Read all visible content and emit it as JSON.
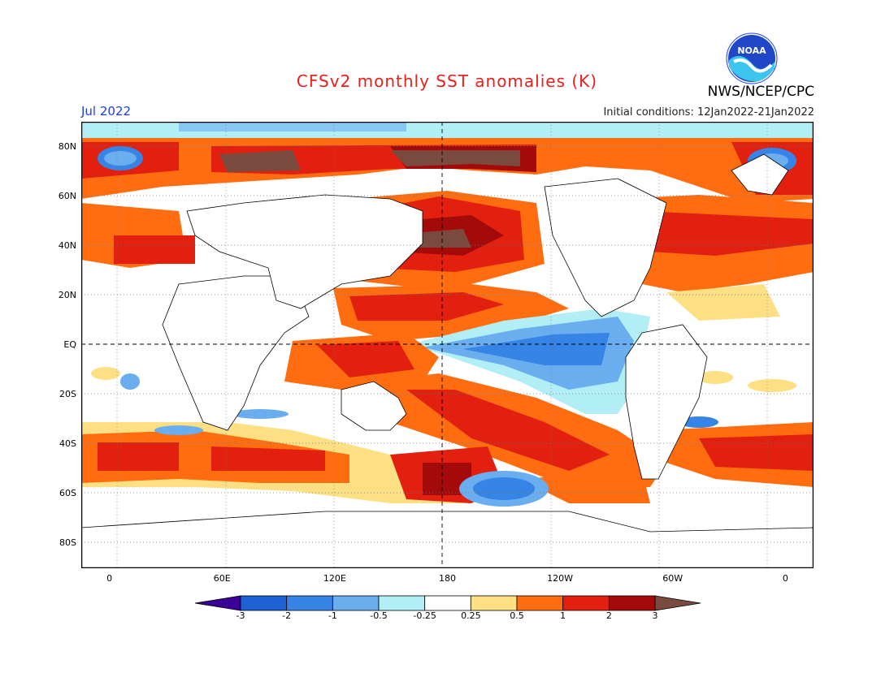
{
  "header": {
    "title": "CFSv2 monthly SST anomalies (K)",
    "month": "Jul 2022",
    "initial_conditions": "Initial conditions: 12Jan2022-21Jan2022",
    "agency": "NWS/NCEP/CPC",
    "logo_text": "NOAA"
  },
  "map": {
    "lat_labels": [
      "80N",
      "60N",
      "40N",
      "20N",
      "EQ",
      "20S",
      "40S",
      "60S",
      "80S"
    ],
    "lat_values": [
      80,
      60,
      40,
      20,
      0,
      -20,
      -40,
      -60,
      -80
    ],
    "lon_labels": [
      "0",
      "60E",
      "120E",
      "180",
      "120W",
      "60W",
      "0"
    ],
    "lon_values": [
      0,
      60,
      120,
      180,
      240,
      300,
      360
    ],
    "lon_range": [
      -15,
      375
    ],
    "lat_range": [
      -90,
      90
    ],
    "grid": "dotted",
    "reference_lines": [
      "EQ",
      "180"
    ]
  },
  "legend": {
    "labels": [
      "-3",
      "-2",
      "-1",
      "-0.5",
      "-0.25",
      "0.25",
      "0.5",
      "1",
      "2",
      "3"
    ],
    "colors": [
      "#3a0096",
      "#1c62d4",
      "#3584e6",
      "#6aaef0",
      "#b2eef5",
      "#ffffff",
      "#fde083",
      "#ff6d10",
      "#e32010",
      "#a50a0a",
      "#7a4a3f"
    ]
  },
  "features": [
    {
      "name": "enso-cold-tongue",
      "sign": "negative",
      "level": -1
    },
    {
      "name": "north-pacific-warm-blob",
      "sign": "positive",
      "level": 2
    },
    {
      "name": "arctic-warm-band",
      "sign": "positive",
      "level": 3
    },
    {
      "name": "southern-ocean-warm-band",
      "sign": "positive",
      "level": 2
    },
    {
      "name": "southeast-pacific-cold-patch",
      "sign": "negative",
      "level": -1
    }
  ]
}
